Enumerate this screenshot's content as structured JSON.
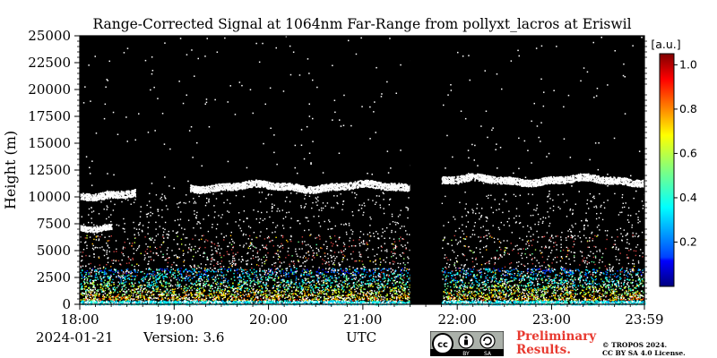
{
  "chart_data": {
    "type": "heatmap",
    "title": "Range-Corrected Signal at 1064nm Far-Range from pollyxt_lacros at Eriswil",
    "ylabel": "Height (m)",
    "xlabel": "UTC",
    "ylim": [
      0,
      25000
    ],
    "xlim": [
      "18:00",
      "23:59"
    ],
    "y_ticks": [
      "0",
      "2500",
      "5000",
      "7500",
      "10000",
      "12500",
      "15000",
      "17500",
      "20000",
      "22500",
      "25000"
    ],
    "x_ticks": [
      "18:00",
      "19:00",
      "20:00",
      "21:00",
      "22:00",
      "23:00",
      "23:59"
    ],
    "colorbar": {
      "unit": "[a.u.]",
      "ticks": [
        "0.2",
        "0.4",
        "0.6",
        "0.8",
        "1.0"
      ],
      "tick_values": [
        0.2,
        0.4,
        0.6,
        0.8,
        1.0
      ],
      "range": [
        0.0,
        1.05
      ],
      "colormap": "jet"
    },
    "background_color": "#000000",
    "gap": {
      "start": "21:30",
      "end": "21:50"
    },
    "features": [
      {
        "type": "cloud_layer",
        "start": "18:00",
        "end": "18:35",
        "height_m": 10300
      },
      {
        "type": "cloud_layer",
        "start": "19:10",
        "end": "21:30",
        "height_m": 11000
      },
      {
        "type": "cloud_layer",
        "start": "21:50",
        "end": "23:59",
        "height_m": 11600
      },
      {
        "type": "aerosol_layer",
        "start": "18:00",
        "end": "18:20",
        "height_m": 7300
      },
      {
        "type": "boundary_layer",
        "start": "18:00",
        "end": "23:59",
        "height_m": 2500
      }
    ]
  },
  "footer": {
    "date": "2024-01-21",
    "version": "Version: 3.6",
    "utc": "UTC",
    "preliminary_line1": "Preliminary",
    "preliminary_line2": "Results.",
    "copyright_line1": "© TROPOS 2024.",
    "copyright_line2": "CC BY SA 4.0 License.",
    "license_cc": "cc",
    "license_by": "BY",
    "license_sa": "SA"
  }
}
